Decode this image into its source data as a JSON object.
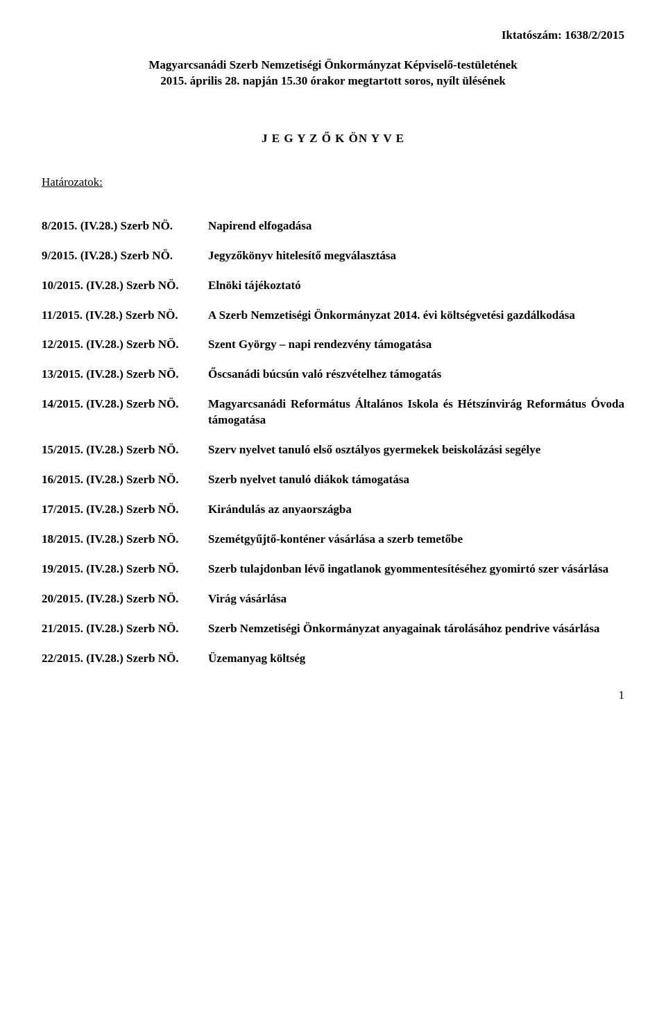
{
  "iktato": "Iktatószám: 1638/2/2015",
  "header": {
    "line1": "Magyarcsanádi Szerb Nemzetiségi Önkormányzat Képviselő-testületének",
    "line2": "2015. április 28. napján 15.30 órakor megtartott soros, nyílt ülésének"
  },
  "jegyzo_title": "J E G Y Z Ő K ÖN Y V E",
  "hatarozatok_label": "Határozatok:",
  "resolutions": [
    {
      "key": "8/2015. (IV.28.) Szerb NÖ.",
      "value": "Napirend elfogadása"
    },
    {
      "key": "9/2015. (IV.28.) Szerb NÖ.",
      "value": "Jegyzőkönyv hitelesítő megválasztása"
    },
    {
      "key": "10/2015. (IV.28.) Szerb NÖ.",
      "value": "Elnöki tájékoztató"
    },
    {
      "key": "11/2015. (IV.28.) Szerb NÖ.",
      "value": "A Szerb Nemzetiségi Önkormányzat 2014. évi költségvetési gazdálkodása"
    },
    {
      "key": "12/2015. (IV.28.) Szerb NÖ.",
      "value": "Szent György – napi rendezvény támogatása"
    },
    {
      "key": "13/2015. (IV.28.) Szerb NÖ.",
      "value": "Őscsanádi búcsún való részvételhez támogatás"
    },
    {
      "key": "14/2015. (IV.28.) Szerb NÖ.",
      "value": "Magyarcsanádi Református Általános Iskola és Hétszínvirág Református Óvoda támogatása"
    },
    {
      "key": "15/2015. (IV.28.) Szerb NÖ.",
      "value": "Szerv nyelvet tanuló első osztályos gyermekek beiskolázási segélye"
    },
    {
      "key": "16/2015. (IV.28.) Szerb NÖ.",
      "value": "Szerb nyelvet tanuló diákok támogatása"
    },
    {
      "key": "17/2015. (IV.28.) Szerb NÖ.",
      "value": "Kirándulás az anyaországba"
    },
    {
      "key": "18/2015. (IV.28.) Szerb NÖ.",
      "value": "Szemétgyűjtő-konténer vásárlása a szerb temetőbe"
    },
    {
      "key": "19/2015. (IV.28.) Szerb NÖ.",
      "value": "Szerb tulajdonban lévő ingatlanok gyommentesítéséhez gyomirtó szer vásárlása"
    },
    {
      "key": "20/2015. (IV.28.) Szerb NÖ.",
      "value": "Virág vásárlása"
    },
    {
      "key": "21/2015. (IV.28.) Szerb NÖ.",
      "value": "Szerb Nemzetiségi Önkormányzat anyagainak tárolásához pendrive vásárlása"
    },
    {
      "key": "22/2015. (IV.28.) Szerb NÖ.",
      "value": "Üzemanyag költség"
    }
  ],
  "page_number": "1"
}
